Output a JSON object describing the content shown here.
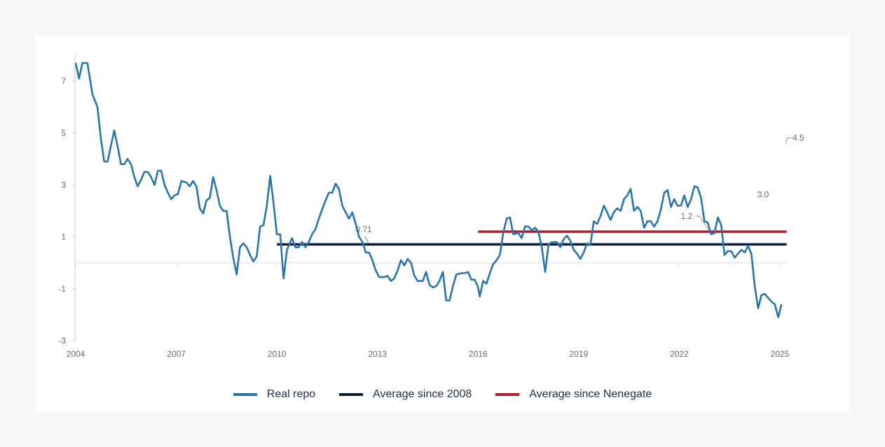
{
  "colors": {
    "real_repo": "#2a74a8",
    "avg_2008": "#0d1b3d",
    "avg_nenegate": "#b01f2e",
    "axis": "#c8c8c8"
  },
  "chart_data": {
    "type": "line",
    "xlim": [
      2004,
      2025.3
    ],
    "ylim": [
      -3,
      8
    ],
    "x_ticks": [
      {
        "value": 2004,
        "label": "2004"
      },
      {
        "value": 2007,
        "label": "2007"
      },
      {
        "value": 2010,
        "label": "2010"
      },
      {
        "value": 2013,
        "label": "2013"
      },
      {
        "value": 2016,
        "label": "2016"
      },
      {
        "value": 2019,
        "label": "2019"
      },
      {
        "value": 2022,
        "label": "2022"
      },
      {
        "value": 2025,
        "label": "2025"
      }
    ],
    "y_ticks": [
      {
        "value": 7,
        "label": "7"
      },
      {
        "value": 5,
        "label": "5"
      },
      {
        "value": 3,
        "label": "3"
      },
      {
        "value": 1,
        "label": "1"
      },
      {
        "value": -1,
        "label": "-1"
      },
      {
        "value": -3,
        "label": "-3"
      }
    ],
    "series": [
      {
        "name": "Real repo",
        "color": "#2a74a8",
        "points": [
          [
            2004.0,
            7.7
          ],
          [
            2004.1,
            7.1
          ],
          [
            2004.2,
            7.7
          ],
          [
            2004.35,
            7.7
          ],
          [
            2004.5,
            6.5
          ],
          [
            2004.65,
            6.0
          ],
          [
            2004.75,
            4.8
          ],
          [
            2004.85,
            3.9
          ],
          [
            2004.95,
            3.9
          ],
          [
            2005.05,
            4.5
          ],
          [
            2005.15,
            5.1
          ],
          [
            2005.25,
            4.5
          ],
          [
            2005.35,
            3.8
          ],
          [
            2005.45,
            3.8
          ],
          [
            2005.55,
            4.0
          ],
          [
            2005.65,
            3.8
          ],
          [
            2005.75,
            3.3
          ],
          [
            2005.85,
            2.95
          ],
          [
            2005.95,
            3.2
          ],
          [
            2006.05,
            3.5
          ],
          [
            2006.15,
            3.5
          ],
          [
            2006.25,
            3.3
          ],
          [
            2006.35,
            3.0
          ],
          [
            2006.45,
            3.55
          ],
          [
            2006.55,
            3.55
          ],
          [
            2006.65,
            3.0
          ],
          [
            2006.75,
            2.7
          ],
          [
            2006.85,
            2.45
          ],
          [
            2006.95,
            2.6
          ],
          [
            2007.05,
            2.65
          ],
          [
            2007.15,
            3.15
          ],
          [
            2007.3,
            3.1
          ],
          [
            2007.4,
            2.95
          ],
          [
            2007.5,
            3.15
          ],
          [
            2007.6,
            2.95
          ],
          [
            2007.7,
            2.1
          ],
          [
            2007.8,
            1.9
          ],
          [
            2007.9,
            2.4
          ],
          [
            2008.0,
            2.5
          ],
          [
            2008.1,
            3.3
          ],
          [
            2008.2,
            2.8
          ],
          [
            2008.3,
            2.2
          ],
          [
            2008.4,
            2.0
          ],
          [
            2008.5,
            2.0
          ],
          [
            2008.6,
            1.0
          ],
          [
            2008.7,
            0.2
          ],
          [
            2008.8,
            -0.45
          ],
          [
            2008.9,
            0.6
          ],
          [
            2009.0,
            0.75
          ],
          [
            2009.1,
            0.6
          ],
          [
            2009.2,
            0.3
          ],
          [
            2009.3,
            0.05
          ],
          [
            2009.4,
            0.25
          ],
          [
            2009.5,
            1.4
          ],
          [
            2009.6,
            1.45
          ],
          [
            2009.7,
            2.2
          ],
          [
            2009.8,
            3.35
          ],
          [
            2009.9,
            2.3
          ],
          [
            2010.0,
            1.1
          ],
          [
            2010.1,
            1.1
          ],
          [
            2010.2,
            -0.6
          ],
          [
            2010.3,
            0.5
          ],
          [
            2010.45,
            0.95
          ],
          [
            2010.55,
            0.6
          ],
          [
            2010.65,
            0.6
          ],
          [
            2010.75,
            0.8
          ],
          [
            2010.85,
            0.6
          ],
          [
            2010.95,
            0.8
          ],
          [
            2011.05,
            1.1
          ],
          [
            2011.15,
            1.3
          ],
          [
            2011.25,
            1.7
          ],
          [
            2011.35,
            2.05
          ],
          [
            2011.45,
            2.4
          ],
          [
            2011.55,
            2.7
          ],
          [
            2011.65,
            2.7
          ],
          [
            2011.75,
            3.05
          ],
          [
            2011.85,
            2.85
          ],
          [
            2011.95,
            2.2
          ],
          [
            2012.05,
            1.95
          ],
          [
            2012.15,
            1.7
          ],
          [
            2012.25,
            1.95
          ],
          [
            2012.35,
            1.5
          ],
          [
            2012.45,
            1.0
          ],
          [
            2012.55,
            0.8
          ],
          [
            2012.65,
            0.4
          ],
          [
            2012.75,
            0.4
          ],
          [
            2012.85,
            0.1
          ],
          [
            2012.95,
            -0.3
          ],
          [
            2013.05,
            -0.55
          ],
          [
            2013.2,
            -0.55
          ],
          [
            2013.3,
            -0.5
          ],
          [
            2013.4,
            -0.7
          ],
          [
            2013.5,
            -0.6
          ],
          [
            2013.6,
            -0.3
          ],
          [
            2013.7,
            0.1
          ],
          [
            2013.8,
            -0.1
          ],
          [
            2013.9,
            0.15
          ],
          [
            2014.0,
            0.0
          ],
          [
            2014.1,
            -0.5
          ],
          [
            2014.2,
            -0.7
          ],
          [
            2014.35,
            -0.7
          ],
          [
            2014.45,
            -0.35
          ],
          [
            2014.55,
            -0.85
          ],
          [
            2014.65,
            -0.95
          ],
          [
            2014.75,
            -0.9
          ],
          [
            2014.85,
            -0.7
          ],
          [
            2014.95,
            -0.35
          ],
          [
            2015.05,
            -1.45
          ],
          [
            2015.15,
            -1.45
          ],
          [
            2015.25,
            -0.9
          ],
          [
            2015.35,
            -0.45
          ],
          [
            2015.5,
            -0.4
          ],
          [
            2015.6,
            -0.4
          ],
          [
            2015.7,
            -0.35
          ],
          [
            2015.8,
            -0.65
          ],
          [
            2015.9,
            -0.65
          ],
          [
            2016.0,
            -0.95
          ],
          [
            2016.05,
            -1.3
          ],
          [
            2016.15,
            -0.7
          ],
          [
            2016.25,
            -0.8
          ],
          [
            2016.35,
            -0.4
          ],
          [
            2016.45,
            -0.05
          ],
          [
            2016.55,
            0.1
          ],
          [
            2016.65,
            0.3
          ],
          [
            2016.75,
            1.15
          ],
          [
            2016.85,
            1.7
          ],
          [
            2016.95,
            1.75
          ],
          [
            2017.05,
            1.1
          ],
          [
            2017.2,
            1.15
          ],
          [
            2017.3,
            0.95
          ],
          [
            2017.4,
            1.4
          ],
          [
            2017.5,
            1.4
          ],
          [
            2017.6,
            1.25
          ],
          [
            2017.7,
            1.35
          ],
          [
            2017.8,
            1.2
          ],
          [
            2017.9,
            0.6
          ],
          [
            2018.0,
            -0.35
          ],
          [
            2018.1,
            0.7
          ],
          [
            2018.2,
            0.8
          ],
          [
            2018.35,
            0.8
          ],
          [
            2018.45,
            0.6
          ],
          [
            2018.55,
            0.9
          ],
          [
            2018.65,
            1.05
          ],
          [
            2018.75,
            0.85
          ],
          [
            2018.85,
            0.5
          ],
          [
            2018.95,
            0.35
          ],
          [
            2019.05,
            0.15
          ],
          [
            2019.15,
            0.4
          ],
          [
            2019.25,
            0.75
          ],
          [
            2019.35,
            0.7
          ],
          [
            2019.45,
            1.6
          ],
          [
            2019.55,
            1.5
          ],
          [
            2019.65,
            1.8
          ],
          [
            2019.75,
            2.2
          ],
          [
            2019.85,
            1.95
          ],
          [
            2019.95,
            1.65
          ],
          [
            2020.05,
            1.95
          ],
          [
            2020.15,
            2.1
          ],
          [
            2020.25,
            2.0
          ],
          [
            2020.35,
            2.45
          ],
          [
            2020.45,
            2.6
          ],
          [
            2020.55,
            2.85
          ],
          [
            2020.65,
            2.0
          ],
          [
            2020.75,
            2.15
          ],
          [
            2020.85,
            2.0
          ],
          [
            2020.95,
            1.35
          ],
          [
            2021.05,
            1.6
          ],
          [
            2021.15,
            1.6
          ],
          [
            2021.25,
            1.4
          ],
          [
            2021.35,
            1.6
          ],
          [
            2021.45,
            2.05
          ],
          [
            2021.55,
            2.7
          ],
          [
            2021.65,
            2.8
          ],
          [
            2021.75,
            2.15
          ],
          [
            2021.85,
            2.45
          ],
          [
            2021.95,
            2.2
          ],
          [
            2022.05,
            2.2
          ],
          [
            2022.15,
            2.6
          ],
          [
            2022.25,
            2.15
          ],
          [
            2022.35,
            2.45
          ],
          [
            2022.45,
            2.95
          ],
          [
            2022.55,
            2.9
          ],
          [
            2022.65,
            2.5
          ],
          [
            2022.75,
            1.6
          ],
          [
            2022.85,
            1.55
          ],
          [
            2022.95,
            1.1
          ],
          [
            2023.05,
            1.15
          ],
          [
            2023.15,
            1.75
          ],
          [
            2023.25,
            1.45
          ],
          [
            2023.35,
            0.3
          ],
          [
            2023.45,
            0.45
          ],
          [
            2023.55,
            0.45
          ],
          [
            2023.65,
            0.2
          ],
          [
            2023.75,
            0.35
          ],
          [
            2023.85,
            0.5
          ],
          [
            2023.95,
            0.4
          ],
          [
            2024.05,
            0.65
          ],
          [
            2024.15,
            0.35
          ],
          [
            2024.25,
            -0.9
          ],
          [
            2024.35,
            -1.75
          ],
          [
            2024.45,
            -1.25
          ],
          [
            2024.55,
            -1.2
          ],
          [
            2024.65,
            -1.35
          ],
          [
            2024.75,
            -1.5
          ],
          [
            2024.85,
            -1.6
          ],
          [
            2024.95,
            -2.1
          ],
          [
            2025.05,
            -1.6
          ]
        ]
      }
    ],
    "reference_lines": [
      {
        "name": "Average since 2008",
        "value": 0.71,
        "x_start": 2010.0,
        "x_end": 2025.2,
        "color": "#0d1b3d",
        "label": "0.71"
      },
      {
        "name": "Average since Nenegate",
        "value": 1.2,
        "x_start": 2016.0,
        "x_end": 2025.2,
        "color": "#b01f2e",
        "label": "1.2"
      }
    ],
    "annotations": [
      {
        "label": "4.5",
        "x": 2025.15,
        "y": 4.5
      },
      {
        "label": "3.0",
        "x": 2024.0,
        "y": 3.0
      }
    ],
    "legend_position": "bottom-center",
    "grid": false
  },
  "legend": [
    {
      "label": "Real repo",
      "color": "#2a74a8"
    },
    {
      "label": "Average since 2008",
      "color": "#0d1b3d"
    },
    {
      "label": "Average since Nenegate",
      "color": "#b01f2e"
    }
  ]
}
